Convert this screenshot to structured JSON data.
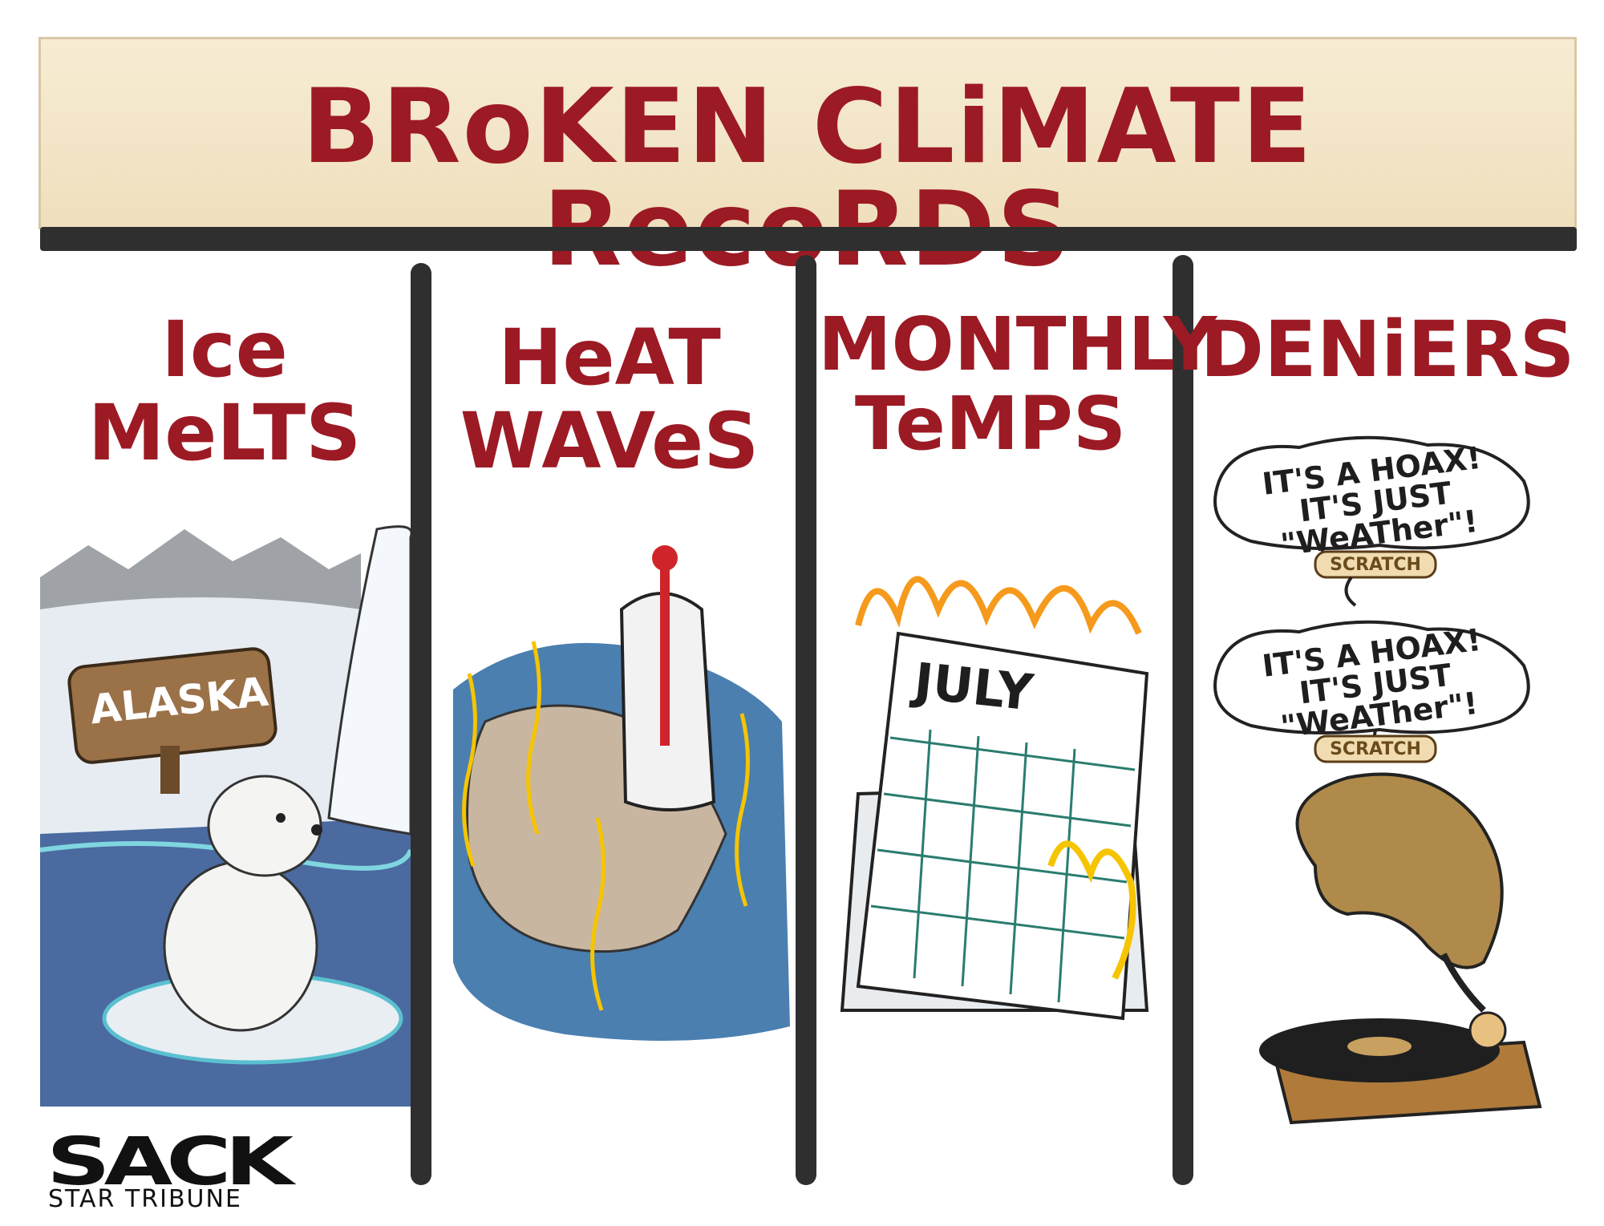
{
  "banner": {
    "title": "BRoKEN CLiMATE RecoRDS"
  },
  "panels": [
    {
      "title_line1": "Ice",
      "title_line2": "MeLTS",
      "sign": "ALASKA"
    },
    {
      "title_line1": "HeAT",
      "title_line2": "WAVeS"
    },
    {
      "title_line1": "MONTHLY",
      "title_line2": "TeMPS",
      "calendar": "JULY"
    },
    {
      "title_line1": "DENiERS",
      "bubbles": [
        {
          "line1": "IT'S A HOAX!",
          "line2": "IT'S JUST",
          "line3": "\"WeATher\"!"
        },
        {
          "line1": "IT'S A HOAX!",
          "line2": "IT'S JUST",
          "line3": "\"WeATher\"!"
        }
      ],
      "scratch_labels": [
        "SCRATCH",
        "SCRATCH"
      ]
    }
  ],
  "signature": {
    "name": "SACK",
    "paper": "STAR TRIBUNE"
  },
  "colors": {
    "title_red": "#9c1a24",
    "banner_bg": "#f3e6c9",
    "divider": "#2f2f2f"
  }
}
